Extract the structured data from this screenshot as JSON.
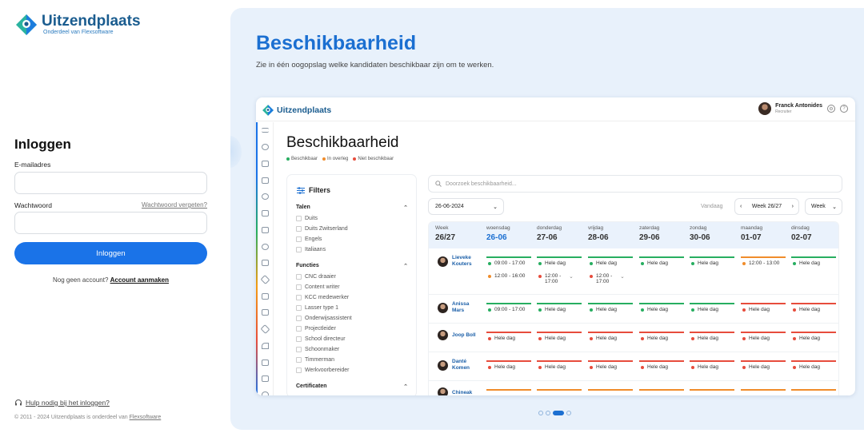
{
  "brand": {
    "name": "Uitzendplaats",
    "tagline": "Onderdeel van Flexsoftware",
    "color": "#1a5c8f"
  },
  "login": {
    "title": "Inloggen",
    "email_label": "E-mailadres",
    "email_value": "",
    "password_label": "Wachtwoord",
    "password_value": "",
    "forgot_link": "Wachtwoord vergeten?",
    "submit_label": "Inloggen",
    "no_account_text": "Nog geen account?",
    "create_account_link": "Account aanmaken",
    "help_link": "Hulp nodig bij het inloggen?",
    "copyright": "© 2011 - 2024 Uitzendplaats is onderdeel van",
    "copyright_link": "Flexsoftware",
    "accent": "#1a73e8"
  },
  "hero": {
    "title": "Beschikbaarheid",
    "subtitle": "Zie in één oogopslag welke kandidaten beschikbaar zijn om te werken.",
    "carousel_active": 3,
    "carousel_count": 4
  },
  "mock": {
    "brand": "Uitzendplaats",
    "user_name": "Franck Antonides",
    "user_role": "Recruiter",
    "title": "Beschikbaarheid",
    "legend": [
      {
        "label": "Beschikbaar",
        "color": "#27ae60"
      },
      {
        "label": "In overleg",
        "color": "#f08c2b"
      },
      {
        "label": "Niet beschikbaar",
        "color": "#e74c3c"
      }
    ],
    "filters_title": "Filters",
    "filter_sections": [
      {
        "title": "Talen",
        "items": [
          "Duits",
          "Duits Zwitserland",
          "Engels",
          "Italiaans"
        ]
      },
      {
        "title": "Functies",
        "items": [
          "CNC draaier",
          "Content writer",
          "KCC medewerker",
          "Lasser type 1",
          "Onderwijsassistent",
          "Projectleider",
          "School directeur",
          "Schoonmaker",
          "Timmerman",
          "Werkvoorbereider"
        ]
      },
      {
        "title": "Certificaten",
        "items": []
      }
    ],
    "search_placeholder": "Doorzoek beschikbaarheid...",
    "date_value": "26-06-2024",
    "today_label": "Vandaag",
    "week_label": "Week 26/27",
    "view_select": "Week",
    "columns": [
      {
        "day": "Week",
        "date": "26/27"
      },
      {
        "day": "woensdag",
        "date": "26-06"
      },
      {
        "day": "donderdag",
        "date": "27-06"
      },
      {
        "day": "vrijdag",
        "date": "28-06"
      },
      {
        "day": "zaterdag",
        "date": "29-06"
      },
      {
        "day": "zondag",
        "date": "30-06"
      },
      {
        "day": "maandag",
        "date": "01-07"
      },
      {
        "day": "dinsdag",
        "date": "02-07"
      }
    ],
    "rows": [
      {
        "name_1": "Lieveke",
        "name_2": "Kouters",
        "cells": [
          {
            "s": "g",
            "t": "09:00 - 17:00"
          },
          {
            "s": "g",
            "t": "Hele dag"
          },
          {
            "s": "g",
            "t": "Hele dag"
          },
          {
            "s": "g",
            "t": "Hele dag"
          },
          {
            "s": "g",
            "t": "Hele dag"
          },
          {
            "s": "o",
            "t": "12:00 - 13:00"
          },
          {
            "s": "g",
            "t": "Hele dag"
          }
        ],
        "sub": [
          {
            "col": 0,
            "s": "o",
            "t": "12:00 - 16:00"
          },
          {
            "col": 1,
            "s": "r",
            "t": "12:00 -",
            "t2": "17:00"
          },
          {
            "col": 2,
            "s": "r",
            "t": "12:00 -",
            "t2": "17:00"
          }
        ]
      },
      {
        "name_1": "Anissa",
        "name_2": "Mars",
        "cells": [
          {
            "s": "g",
            "t": "09:00 - 17:00"
          },
          {
            "s": "g",
            "t": "Hele dag"
          },
          {
            "s": "g",
            "t": "Hele dag"
          },
          {
            "s": "g",
            "t": "Hele dag"
          },
          {
            "s": "g",
            "t": "Hele dag"
          },
          {
            "s": "r",
            "t": "Hele dag"
          },
          {
            "s": "r",
            "t": "Hele dag"
          }
        ]
      },
      {
        "name_1": "Joop Boll",
        "name_2": "",
        "cells": [
          {
            "s": "r",
            "t": "Hele dag"
          },
          {
            "s": "r",
            "t": "Hele dag"
          },
          {
            "s": "r",
            "t": "Hele dag"
          },
          {
            "s": "r",
            "t": "Hele dag"
          },
          {
            "s": "r",
            "t": "Hele dag"
          },
          {
            "s": "r",
            "t": "Hele dag"
          },
          {
            "s": "r",
            "t": "Hele dag"
          }
        ]
      },
      {
        "name_1": "Danté",
        "name_2": "Komen",
        "cells": [
          {
            "s": "r",
            "t": "Hele dag"
          },
          {
            "s": "r",
            "t": "Hele dag"
          },
          {
            "s": "r",
            "t": "Hele dag"
          },
          {
            "s": "r",
            "t": "Hele dag"
          },
          {
            "s": "r",
            "t": "Hele dag"
          },
          {
            "s": "r",
            "t": "Hele dag"
          },
          {
            "s": "r",
            "t": "Hele dag"
          }
        ]
      },
      {
        "name_1": "Chineak",
        "name_2": "",
        "cells": [
          {
            "s": "o",
            "t": ""
          },
          {
            "s": "o",
            "t": ""
          },
          {
            "s": "o",
            "t": ""
          },
          {
            "s": "o",
            "t": ""
          },
          {
            "s": "o",
            "t": ""
          },
          {
            "s": "o",
            "t": ""
          },
          {
            "s": "o",
            "t": ""
          }
        ]
      }
    ]
  }
}
